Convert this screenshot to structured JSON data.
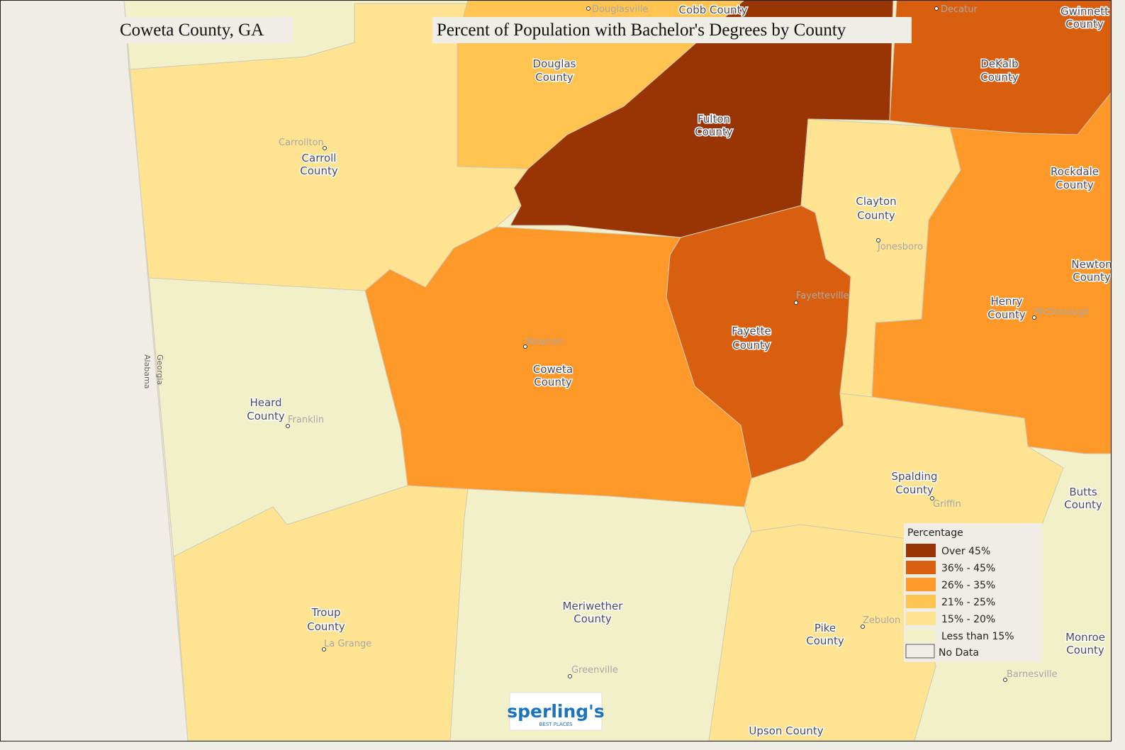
{
  "header": {
    "place": "Coweta County, GA",
    "title": "Percent of Population with Bachelor's Degrees by County"
  },
  "counties": [
    {
      "lines": [
        "Douglas",
        "County"
      ]
    },
    {
      "lines": [
        "Fulton",
        "County"
      ]
    },
    {
      "lines": [
        "DeKalb",
        "County"
      ]
    },
    {
      "lines": [
        "Gwinnett",
        "County"
      ]
    },
    {
      "lines": [
        "Carroll",
        "County"
      ]
    },
    {
      "lines": [
        "Clayton",
        "County"
      ]
    },
    {
      "lines": [
        "Rockdale",
        "County"
      ]
    },
    {
      "lines": [
        "Newton",
        "County"
      ]
    },
    {
      "lines": [
        "Henry",
        "County"
      ]
    },
    {
      "lines": [
        "Fayette",
        "County"
      ]
    },
    {
      "lines": [
        "Coweta",
        "County"
      ]
    },
    {
      "lines": [
        "Heard",
        "County"
      ]
    },
    {
      "lines": [
        "Spalding",
        "County"
      ]
    },
    {
      "lines": [
        "Butts",
        "County"
      ]
    },
    {
      "lines": [
        "Troup",
        "County"
      ]
    },
    {
      "lines": [
        "Meriwether",
        "County"
      ]
    },
    {
      "lines": [
        "Pike",
        "County"
      ]
    },
    {
      "lines": [
        "Monroe",
        "County"
      ]
    },
    {
      "lines": [
        "Cobb County"
      ]
    },
    {
      "lines": [
        "Upson County"
      ]
    }
  ],
  "cities": [
    "Douglasville",
    "Decatur",
    "Carrollton",
    "Jonesboro",
    "Fayetteville",
    "McDonough",
    "Newnan",
    "Franklin",
    "Griffin",
    "Zebulon",
    "La Grange",
    "Greenville",
    "Barnesville"
  ],
  "state_line": [
    "Georgia",
    "Alabama"
  ],
  "legend": {
    "title": "Percentage",
    "items": [
      "Over 45%",
      "36% - 45%",
      "26% - 35%",
      "21% - 25%",
      "15% - 20%",
      "Less than 15%",
      "No Data"
    ]
  },
  "logo": {
    "name": "sperling's",
    "tagline": "BEST PLACES"
  }
}
